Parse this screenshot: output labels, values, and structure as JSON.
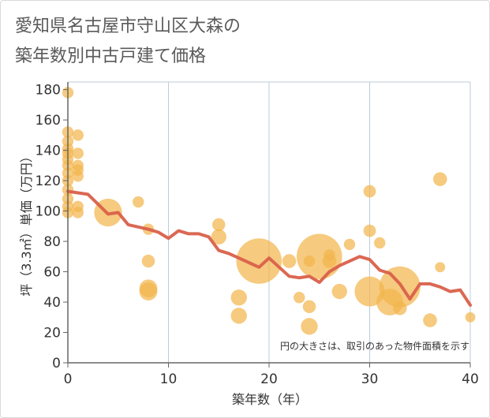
{
  "chart_data": {
    "type": "scatter",
    "title": "愛知県名古屋市守山区大森の\n築年数別中古戸建て価格",
    "xlabel": "築年数（年）",
    "ylabel": "坪（3.3㎡）単価（万円）",
    "xlim": [
      0,
      40
    ],
    "ylim": [
      0,
      185
    ],
    "x_ticks": [
      0,
      10,
      20,
      30,
      40
    ],
    "y_ticks": [
      0,
      20,
      40,
      60,
      80,
      100,
      120,
      140,
      160,
      180
    ],
    "grid": "vertical",
    "note": "円の大きさは、取引のあった物件面積を示す",
    "colors": {
      "bubble": "#f2b54e",
      "line": "#d9604a",
      "grid": "#bccbd8",
      "axis": "#666666"
    },
    "bubbles": [
      {
        "x": 0,
        "y": 178,
        "size": 1
      },
      {
        "x": 0,
        "y": 152,
        "size": 1
      },
      {
        "x": 0,
        "y": 146,
        "size": 1
      },
      {
        "x": 0,
        "y": 141,
        "size": 1
      },
      {
        "x": 0,
        "y": 138,
        "size": 1
      },
      {
        "x": 0,
        "y": 134,
        "size": 1
      },
      {
        "x": 0,
        "y": 130,
        "size": 1
      },
      {
        "x": 0,
        "y": 125,
        "size": 1
      },
      {
        "x": 0,
        "y": 120,
        "size": 1
      },
      {
        "x": 0,
        "y": 114,
        "size": 1
      },
      {
        "x": 0,
        "y": 108,
        "size": 1
      },
      {
        "x": 0,
        "y": 103,
        "size": 1
      },
      {
        "x": 0,
        "y": 99,
        "size": 1
      },
      {
        "x": 1,
        "y": 150,
        "size": 1
      },
      {
        "x": 1,
        "y": 138,
        "size": 1
      },
      {
        "x": 1,
        "y": 130,
        "size": 1
      },
      {
        "x": 1,
        "y": 127,
        "size": 1
      },
      {
        "x": 1,
        "y": 123,
        "size": 1
      },
      {
        "x": 1,
        "y": 103,
        "size": 1
      },
      {
        "x": 1,
        "y": 99,
        "size": 1
      },
      {
        "x": 4,
        "y": 99,
        "size": 6
      },
      {
        "x": 7,
        "y": 106,
        "size": 1
      },
      {
        "x": 8,
        "y": 88,
        "size": 1
      },
      {
        "x": 8,
        "y": 67,
        "size": 1.3
      },
      {
        "x": 8,
        "y": 49,
        "size": 2.5
      },
      {
        "x": 8,
        "y": 47,
        "size": 2.5
      },
      {
        "x": 15,
        "y": 91,
        "size": 1.3
      },
      {
        "x": 15,
        "y": 83,
        "size": 1.8
      },
      {
        "x": 17,
        "y": 43,
        "size": 2
      },
      {
        "x": 17,
        "y": 31,
        "size": 2
      },
      {
        "x": 19,
        "y": 67,
        "size": 16
      },
      {
        "x": 22,
        "y": 67,
        "size": 1.5
      },
      {
        "x": 23,
        "y": 43,
        "size": 1
      },
      {
        "x": 24,
        "y": 67,
        "size": 1
      },
      {
        "x": 24,
        "y": 37,
        "size": 1.3
      },
      {
        "x": 24,
        "y": 24,
        "size": 2.2
      },
      {
        "x": 25,
        "y": 70,
        "size": 16
      },
      {
        "x": 26,
        "y": 71,
        "size": 1
      },
      {
        "x": 26,
        "y": 67,
        "size": 1.5
      },
      {
        "x": 27,
        "y": 47,
        "size": 1.8
      },
      {
        "x": 28,
        "y": 78,
        "size": 1
      },
      {
        "x": 30,
        "y": 113,
        "size": 1.2
      },
      {
        "x": 30,
        "y": 87,
        "size": 1.2
      },
      {
        "x": 30,
        "y": 47,
        "size": 7
      },
      {
        "x": 31,
        "y": 79,
        "size": 1
      },
      {
        "x": 32,
        "y": 40,
        "size": 5.5
      },
      {
        "x": 33,
        "y": 50,
        "size": 13
      },
      {
        "x": 33,
        "y": 36,
        "size": 1.5
      },
      {
        "x": 36,
        "y": 28,
        "size": 1.5
      },
      {
        "x": 37,
        "y": 121,
        "size": 1.5
      },
      {
        "x": 37,
        "y": 63,
        "size": 0.8
      },
      {
        "x": 40,
        "y": 30,
        "size": 0.8
      }
    ],
    "series": [
      {
        "x": [
          0,
          2,
          4,
          5,
          6,
          8,
          9,
          10,
          11,
          12,
          13,
          14,
          15,
          16,
          17,
          18,
          19,
          20,
          21,
          22,
          23,
          24,
          25,
          26,
          27,
          28,
          29,
          30,
          31,
          32,
          33,
          34,
          35,
          36,
          37,
          38,
          39,
          40
        ],
        "values": [
          113,
          111,
          98,
          99,
          91,
          88,
          86,
          82,
          87,
          85,
          85,
          83,
          74,
          72,
          69,
          66,
          63,
          69,
          63,
          57,
          56,
          57,
          53,
          60,
          64,
          67,
          70,
          68,
          61,
          59,
          52,
          42,
          52,
          52,
          50,
          47,
          48,
          38
        ]
      }
    ]
  }
}
